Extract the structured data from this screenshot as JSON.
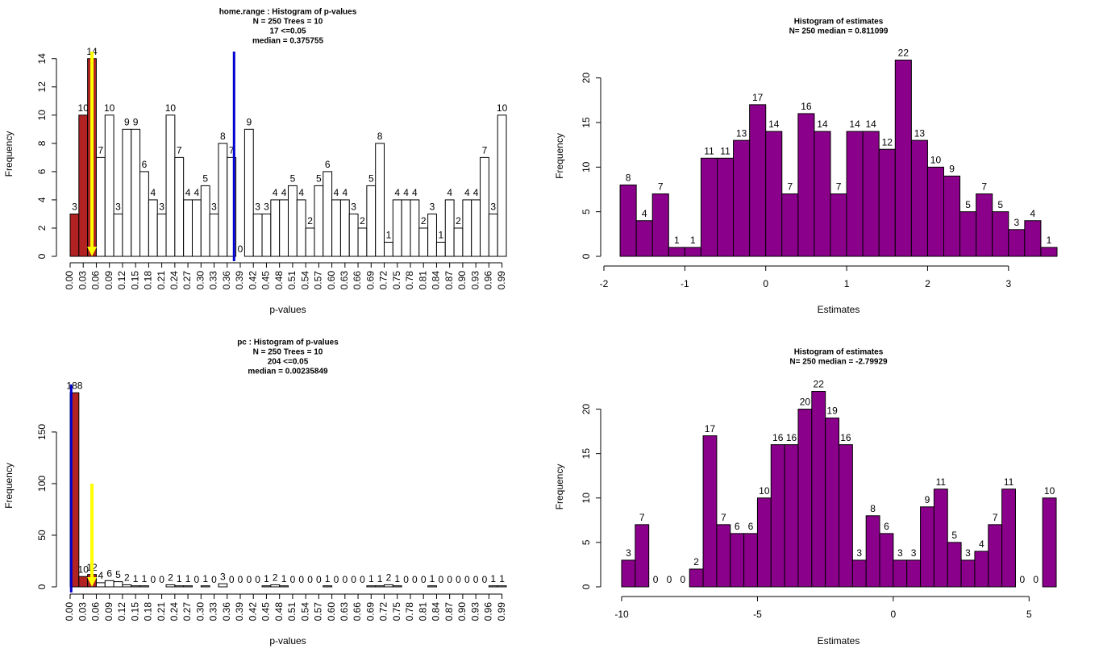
{
  "chart_data": [
    {
      "type": "histogram",
      "title": "home.range : Histogram of p-values",
      "subtitle": [
        "N = 250 Trees =  10",
        "17 <=0.05",
        "median = 0.375755"
      ],
      "xlabel": "p-values",
      "ylabel": "Frequency",
      "bins": [
        0,
        0.02,
        0.04,
        0.06,
        0.08,
        0.1,
        0.12,
        0.14,
        0.16,
        0.18,
        0.2,
        0.22,
        0.24,
        0.26,
        0.28,
        0.3,
        0.32,
        0.34,
        0.36,
        0.38,
        0.4,
        0.42,
        0.44,
        0.46,
        0.48,
        0.5,
        0.52,
        0.54,
        0.56,
        0.58,
        0.6,
        0.62,
        0.64,
        0.66,
        0.68,
        0.7,
        0.72,
        0.74,
        0.76,
        0.78,
        0.8,
        0.82,
        0.84,
        0.86,
        0.88,
        0.9,
        0.92,
        0.94,
        0.96,
        0.98,
        1
      ],
      "values": [
        3,
        10,
        14,
        7,
        10,
        3,
        9,
        9,
        6,
        4,
        3,
        10,
        7,
        4,
        4,
        5,
        3,
        8,
        7,
        0,
        9,
        3,
        3,
        4,
        4,
        5,
        4,
        2,
        5,
        6,
        4,
        4,
        3,
        2,
        5,
        8,
        1,
        4,
        4,
        4,
        2,
        3,
        1,
        4,
        2,
        4,
        4,
        7,
        3,
        10
      ],
      "colors": [
        "#b22222",
        "#b22222",
        "#b22222",
        "#ffffff",
        "#ffffff",
        "#ffffff",
        "#ffffff",
        "#ffffff",
        "#ffffff",
        "#ffffff",
        "#ffffff",
        "#ffffff",
        "#ffffff",
        "#ffffff",
        "#ffffff",
        "#ffffff",
        "#ffffff",
        "#ffffff",
        "#ffffff",
        "#ffffff",
        "#ffffff",
        "#ffffff",
        "#ffffff",
        "#ffffff",
        "#ffffff",
        "#ffffff",
        "#ffffff",
        "#ffffff",
        "#ffffff",
        "#ffffff",
        "#ffffff",
        "#ffffff",
        "#ffffff",
        "#ffffff",
        "#ffffff",
        "#ffffff",
        "#ffffff",
        "#ffffff",
        "#ffffff",
        "#ffffff",
        "#ffffff",
        "#ffffff",
        "#ffffff",
        "#ffffff",
        "#ffffff",
        "#ffffff",
        "#ffffff",
        "#ffffff",
        "#ffffff",
        "#ffffff"
      ],
      "xlim": [
        0,
        1
      ],
      "ylim": [
        0,
        14.5
      ],
      "xticks": [
        {
          "value": 0,
          "label": "0.00"
        },
        0.03,
        0.06,
        0.09,
        0.12,
        0.15,
        0.18,
        0.21,
        0.24,
        0.27,
        {
          "value": 0.3,
          "label": "0.30"
        },
        0.33,
        0.36,
        0.39,
        0.42,
        0.45,
        0.48,
        0.51,
        0.54,
        0.57,
        {
          "value": 0.6,
          "label": "0.60"
        },
        0.63,
        0.66,
        0.69,
        0.72,
        0.75,
        0.78,
        0.81,
        0.84,
        0.87,
        {
          "value": 0.9,
          "label": "0.90"
        },
        0.93,
        0.96,
        0.99
      ],
      "yticks": [
        0,
        2,
        4,
        6,
        8,
        10,
        12,
        14
      ],
      "median_line": {
        "x": 0.375755,
        "color": "#0000cd"
      },
      "threshold_arrow": {
        "x": 0.05,
        "from": 14.5,
        "to": 0,
        "color": "#ffff00"
      }
    },
    {
      "type": "histogram",
      "title": "Histogram of estimates",
      "subtitle": [
        "N= 250 median = 0.811099"
      ],
      "xlabel": "Estimates",
      "ylabel": "Frequency",
      "bins": [
        -1.8,
        -1.6,
        -1.4,
        -1.2,
        -1,
        -0.8,
        -0.6,
        -0.4,
        -0.2,
        0,
        0.2,
        0.4,
        0.6,
        0.8,
        1,
        1.2,
        1.4,
        1.6,
        1.8,
        2,
        2.2,
        2.4,
        2.6,
        2.8,
        3,
        3.2,
        3.4,
        3.6
      ],
      "values": [
        8,
        4,
        7,
        1,
        1,
        11,
        11,
        13,
        17,
        14,
        7,
        16,
        14,
        7,
        14,
        14,
        12,
        22,
        13,
        10,
        9,
        5,
        7,
        5,
        3,
        4,
        1
      ],
      "color": "#8b008b",
      "xlim": [
        -2,
        3.6
      ],
      "ylim": [
        0,
        22.5
      ],
      "xticks": [
        -2,
        -1,
        0,
        1,
        2,
        3
      ],
      "yticks": [
        0,
        5,
        10,
        15,
        20
      ]
    },
    {
      "type": "histogram",
      "title": "pc : Histogram of p-values",
      "subtitle": [
        "N = 250 Trees =  10",
        "204 <=0.05",
        "median = 0.00235849"
      ],
      "xlabel": "p-values",
      "ylabel": "Frequency",
      "bins": [
        0,
        0.02,
        0.04,
        0.06,
        0.08,
        0.1,
        0.12,
        0.14,
        0.16,
        0.18,
        0.2,
        0.22,
        0.24,
        0.26,
        0.28,
        0.3,
        0.32,
        0.34,
        0.36,
        0.38,
        0.4,
        0.42,
        0.44,
        0.46,
        0.48,
        0.5,
        0.52,
        0.54,
        0.56,
        0.58,
        0.6,
        0.62,
        0.64,
        0.66,
        0.68,
        0.7,
        0.72,
        0.74,
        0.76,
        0.78,
        0.8,
        0.82,
        0.84,
        0.86,
        0.88,
        0.9,
        0.92,
        0.94,
        0.96,
        0.98,
        1
      ],
      "values": [
        188,
        10,
        12,
        4,
        6,
        5,
        2,
        1,
        1,
        0,
        0,
        2,
        1,
        1,
        0,
        1,
        0,
        3,
        0,
        0,
        0,
        0,
        1,
        2,
        1,
        0,
        0,
        0,
        0,
        1,
        0,
        0,
        0,
        0,
        1,
        1,
        2,
        1,
        0,
        0,
        0,
        1,
        0,
        0,
        0,
        0,
        0,
        0,
        1,
        1
      ],
      "colors": [
        "#b22222",
        "#b22222",
        "#b22222",
        "#ffffff",
        "#ffffff",
        "#ffffff",
        "#ffffff",
        "#ffffff",
        "#ffffff",
        "#ffffff",
        "#ffffff",
        "#ffffff",
        "#ffffff",
        "#ffffff",
        "#ffffff",
        "#ffffff",
        "#ffffff",
        "#ffffff",
        "#ffffff",
        "#ffffff",
        "#ffffff",
        "#ffffff",
        "#ffffff",
        "#ffffff",
        "#ffffff",
        "#ffffff",
        "#ffffff",
        "#ffffff",
        "#ffffff",
        "#ffffff",
        "#ffffff",
        "#ffffff",
        "#ffffff",
        "#ffffff",
        "#ffffff",
        "#ffffff",
        "#ffffff",
        "#ffffff",
        "#ffffff",
        "#ffffff",
        "#ffffff",
        "#ffffff",
        "#ffffff",
        "#ffffff",
        "#ffffff",
        "#ffffff",
        "#ffffff",
        "#ffffff",
        "#ffffff",
        "#ffffff"
      ],
      "xlim": [
        0,
        1
      ],
      "ylim": [
        0,
        196
      ],
      "xticks": [
        {
          "value": 0,
          "label": "0.00"
        },
        0.03,
        0.06,
        0.09,
        0.12,
        0.15,
        0.18,
        0.21,
        0.24,
        0.27,
        {
          "value": 0.3,
          "label": "0.30"
        },
        0.33,
        0.36,
        0.39,
        0.42,
        0.45,
        0.48,
        0.51,
        0.54,
        0.57,
        {
          "value": 0.6,
          "label": "0.60"
        },
        0.63,
        0.66,
        0.69,
        0.72,
        0.75,
        0.78,
        0.81,
        0.84,
        0.87,
        {
          "value": 0.9,
          "label": "0.90"
        },
        0.93,
        0.96,
        0.99
      ],
      "yticks": [
        0,
        50,
        100,
        150
      ],
      "median_line": {
        "x": 0.00235849,
        "color": "#0000cd"
      },
      "threshold_arrow": {
        "x": 0.05,
        "from": 100,
        "to": 0,
        "color": "#ffff00"
      }
    },
    {
      "type": "histogram",
      "title": "Histogram of estimates",
      "subtitle": [
        "N= 250 median = -2.79929"
      ],
      "xlabel": "Estimates",
      "ylabel": "Frequency",
      "bins": [
        -10,
        -9.5,
        -9,
        -8.5,
        -8,
        -7.5,
        -7,
        -6.5,
        -6,
        -5.5,
        -5,
        -4.5,
        -4,
        -3.5,
        -3,
        -2.5,
        -2,
        -1.5,
        -1,
        -0.5,
        0,
        0.5,
        1,
        1.5,
        2,
        2.5,
        3,
        3.5,
        4,
        4.5,
        5,
        5.5,
        6
      ],
      "values": [
        3,
        7,
        0,
        0,
        0,
        2,
        17,
        7,
        6,
        6,
        10,
        16,
        16,
        20,
        22,
        19,
        16,
        3,
        8,
        6,
        3,
        3,
        9,
        11,
        5,
        3,
        4,
        7,
        11,
        0,
        0,
        10
      ],
      "color": "#8b008b",
      "xlim": [
        -10,
        6
      ],
      "ylim": [
        0,
        22.5
      ],
      "xticks": [
        -10,
        -5,
        0,
        5
      ],
      "yticks": [
        0,
        5,
        10,
        15,
        20
      ]
    }
  ]
}
